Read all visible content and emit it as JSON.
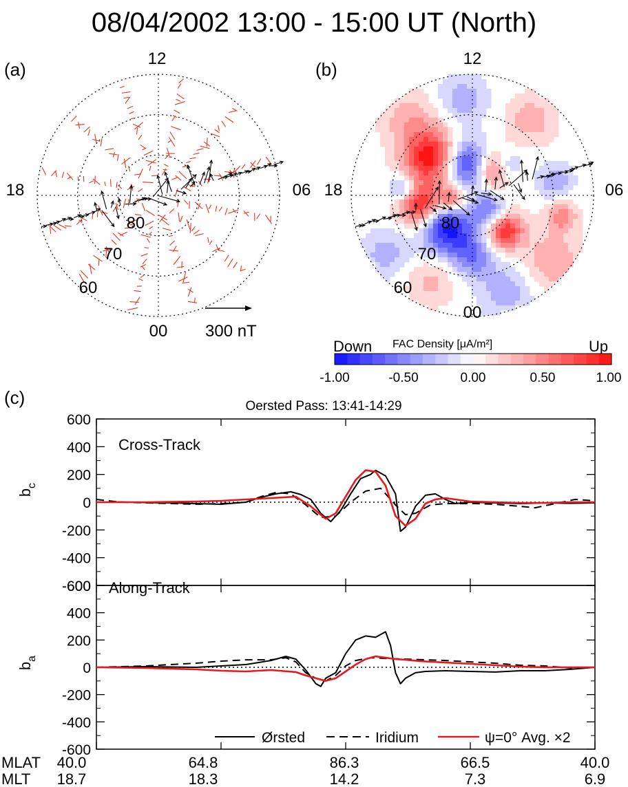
{
  "figure": {
    "title": "08/04/2002  13:00 - 15:00 UT (North)",
    "panel_a_label": "(a)",
    "panel_b_label": "(b)",
    "panel_c_label": "(c)",
    "dial": {
      "mlt_top": "12",
      "mlt_bottom": "00",
      "mlt_left": "18",
      "mlt_right": "06",
      "lat_labels": [
        "80",
        "70",
        "60"
      ],
      "scale_label": "300 nT"
    },
    "colorbar": {
      "left_label": "Down",
      "title": "FAC Density [μA/m²]",
      "right_label": "Up",
      "ticks": [
        "-1.00",
        "-0.50",
        "0.00",
        "0.50",
        "1.00"
      ],
      "low_color": "#1010ff",
      "high_color": "#ff1010"
    },
    "pass_title": "Oersted Pass: 13:41-14:29",
    "bottom_axis": {
      "row1_label": "MLAT",
      "row2_label": "MLT",
      "mlat": [
        "40.0",
        "64.8",
        "86.3",
        "66.5",
        "40.0"
      ],
      "mlt": [
        "18.7",
        "18.3",
        "14.2",
        "7.3",
        "6.9"
      ]
    },
    "colors": {
      "orsted": "#000000",
      "iridium": "#000000",
      "model": "#e8181f",
      "arrows_red": "#e8321f"
    }
  },
  "chart_data": [
    {
      "type": "line",
      "panel": "top",
      "annotation": "Cross-Track",
      "ylabel": "b",
      "ylabel_sub": "c",
      "ylim": [
        -600,
        600
      ],
      "yticks": [
        "600",
        "400",
        "200",
        "0",
        "-200",
        "-400",
        "-600"
      ],
      "x_range": [
        0,
        100
      ],
      "series": [
        {
          "name": "Ørsted",
          "style": "solid",
          "x": [
            0,
            5,
            10,
            15,
            20,
            25,
            30,
            33,
            36,
            39,
            41,
            43,
            45,
            47,
            49,
            51,
            53,
            55,
            56,
            58,
            60,
            61,
            62,
            64,
            66,
            68,
            70,
            72,
            75,
            80,
            85,
            90,
            95,
            100
          ],
          "y": [
            0,
            2,
            -3,
            -5,
            -10,
            -15,
            0,
            35,
            60,
            75,
            55,
            20,
            -80,
            -140,
            -60,
            60,
            170,
            200,
            230,
            190,
            60,
            -210,
            -180,
            -30,
            50,
            60,
            20,
            -10,
            0,
            -5,
            -10,
            -5,
            -8,
            -5
          ]
        },
        {
          "name": "Iridium",
          "style": "dashed",
          "x": [
            0,
            5,
            10,
            15,
            20,
            25,
            30,
            33,
            36,
            39,
            42,
            45,
            48,
            51,
            54,
            57,
            60,
            62,
            64,
            67,
            70,
            73,
            76,
            80,
            85,
            88,
            92,
            96,
            100
          ],
          "y": [
            20,
            0,
            -5,
            -10,
            -15,
            -10,
            0,
            40,
            70,
            60,
            -20,
            -110,
            -100,
            0,
            80,
            100,
            -20,
            -90,
            -80,
            -20,
            -10,
            -10,
            -10,
            -15,
            -30,
            -40,
            -10,
            20,
            10
          ]
        },
        {
          "name": "ψ=0° Avg. ×2",
          "style": "red",
          "x": [
            0,
            10,
            20,
            25,
            30,
            35,
            40,
            43,
            46,
            48,
            50,
            52,
            54,
            56,
            58,
            60,
            62,
            64,
            66,
            68,
            70,
            72,
            75,
            80,
            85,
            90,
            95,
            100
          ],
          "y": [
            0,
            0,
            5,
            10,
            20,
            30,
            40,
            -30,
            -120,
            -80,
            40,
            160,
            230,
            220,
            120,
            -100,
            -170,
            -120,
            -10,
            20,
            30,
            20,
            5,
            0,
            -5,
            -5,
            0,
            0
          ]
        }
      ]
    },
    {
      "type": "line",
      "panel": "bottom",
      "annotation": "Along-Track",
      "ylabel": "b",
      "ylabel_sub": "a",
      "ylim": [
        -600,
        600
      ],
      "yticks": [
        "600",
        "400",
        "200",
        "0",
        "-200",
        "-400",
        "-600"
      ],
      "x_range": [
        0,
        100
      ],
      "series": [
        {
          "name": "Ørsted",
          "style": "solid",
          "x": [
            0,
            10,
            20,
            25,
            30,
            35,
            38,
            40,
            42,
            44,
            45,
            46,
            48,
            50,
            52,
            54,
            56,
            58,
            59,
            60,
            61,
            62,
            64,
            66,
            70,
            75,
            80,
            85,
            90,
            95,
            100
          ],
          "y": [
            0,
            5,
            0,
            10,
            20,
            50,
            80,
            60,
            -20,
            -120,
            -140,
            -80,
            -40,
            100,
            200,
            230,
            220,
            260,
            160,
            -40,
            -120,
            -80,
            -40,
            -30,
            -25,
            -30,
            -35,
            -25,
            -25,
            -15,
            0
          ]
        },
        {
          "name": "Iridium",
          "style": "dashed",
          "x": [
            0,
            10,
            20,
            25,
            30,
            35,
            38,
            40,
            42,
            44,
            46,
            48,
            50,
            52,
            55,
            58,
            62,
            66,
            70,
            75,
            80,
            85,
            90,
            95,
            100
          ],
          "y": [
            0,
            10,
            30,
            45,
            55,
            55,
            70,
            40,
            -40,
            -80,
            -100,
            -60,
            10,
            50,
            70,
            65,
            60,
            55,
            50,
            40,
            30,
            15,
            10,
            -5,
            0
          ]
        },
        {
          "name": "ψ=0° Avg. ×2",
          "style": "red",
          "x": [
            0,
            10,
            20,
            25,
            30,
            35,
            40,
            42,
            44,
            46,
            48,
            50,
            52,
            54,
            56,
            58,
            60,
            62,
            65,
            70,
            75,
            80,
            85,
            90,
            95,
            100
          ],
          "y": [
            0,
            -5,
            -15,
            -25,
            -30,
            -20,
            -35,
            -60,
            -80,
            -100,
            -80,
            -30,
            20,
            60,
            80,
            70,
            60,
            55,
            45,
            35,
            25,
            15,
            5,
            0,
            0,
            0
          ]
        }
      ]
    }
  ]
}
